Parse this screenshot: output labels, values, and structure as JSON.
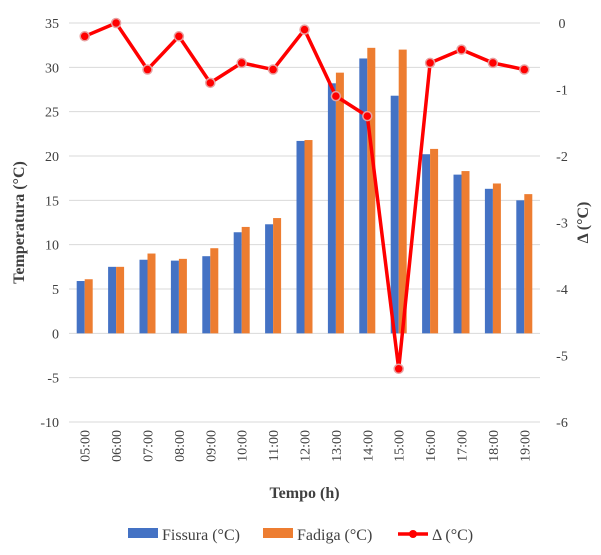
{
  "chart_data": {
    "type": "bar+line",
    "title": "",
    "xlabel": "Tempo (h)",
    "ylabel": "Temperatura (°C)",
    "y2label": "Δ (°C)",
    "ylim": [
      -10,
      35
    ],
    "y2lim": [
      -6,
      0
    ],
    "yticks": [
      -10,
      -5,
      0,
      5,
      10,
      15,
      20,
      25,
      30,
      35
    ],
    "y2ticks": [
      -6,
      -5,
      -4,
      -3,
      -2,
      -1,
      0
    ],
    "grid": true,
    "legend_position": "bottom",
    "categories": [
      "05:00",
      "06:00",
      "07:00",
      "08:00",
      "09:00",
      "10:00",
      "11:00",
      "12:00",
      "13:00",
      "14:00",
      "15:00",
      "16:00",
      "17:00",
      "18:00",
      "19:00"
    ],
    "series": [
      {
        "name": "Fissura (°C)",
        "type": "bar",
        "axis": "left",
        "color": "#4472C4",
        "values": [
          5.9,
          7.5,
          8.3,
          8.2,
          8.7,
          11.4,
          12.3,
          21.7,
          28.2,
          31.0,
          26.8,
          20.2,
          17.9,
          16.3,
          15.0
        ]
      },
      {
        "name": "Fadiga (°C)",
        "type": "bar",
        "axis": "left",
        "color": "#ED7D31",
        "values": [
          6.1,
          7.5,
          9.0,
          8.4,
          9.6,
          12.0,
          13.0,
          21.8,
          29.4,
          32.2,
          32.0,
          20.8,
          18.3,
          16.9,
          15.7
        ]
      },
      {
        "name": "Δ (°C)",
        "type": "line",
        "axis": "right",
        "color": "#FF0000",
        "values": [
          -0.2,
          0,
          -0.7,
          -0.2,
          -0.9,
          -0.6,
          -0.7,
          -0.1,
          -1.1,
          -1.4,
          -5.2,
          -0.6,
          -0.4,
          -0.6,
          -0.7
        ]
      }
    ]
  }
}
